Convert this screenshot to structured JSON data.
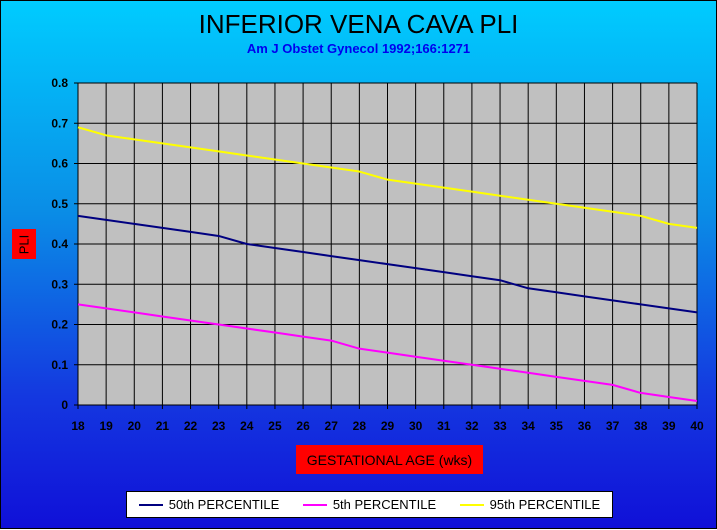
{
  "title": "INFERIOR VENA CAVA PLI",
  "subtitle": "Am J Obstet Gynecol 1992;166:1271",
  "chart_data": {
    "type": "line",
    "title": "INFERIOR VENA CAVA PLI",
    "subtitle": "Am J Obstet Gynecol 1992;166:1271",
    "xlabel": "GESTATIONAL AGE (wks)",
    "ylabel": "PLI",
    "x": [
      18,
      19,
      20,
      21,
      22,
      23,
      24,
      25,
      26,
      27,
      28,
      29,
      30,
      31,
      32,
      33,
      34,
      35,
      36,
      37,
      38,
      39,
      40
    ],
    "xlim": [
      18,
      40
    ],
    "ylim": [
      0,
      0.8
    ],
    "yticks": [
      "0",
      "0.1",
      "0.2",
      "0.3",
      "0.4",
      "0.5",
      "0.6",
      "0.7",
      "0.8"
    ],
    "yticks_values": [
      0,
      0.1,
      0.2,
      0.3,
      0.4,
      0.5,
      0.6,
      0.7,
      0.8
    ],
    "grid": true,
    "legend_placement": "bottom",
    "plot_background": "#c0c0c0",
    "series": [
      {
        "name": "50th PERCENTILE",
        "color": "#000080",
        "values": [
          0.47,
          0.46,
          0.45,
          0.44,
          0.43,
          0.42,
          0.4,
          0.39,
          0.38,
          0.37,
          0.36,
          0.35,
          0.34,
          0.33,
          0.32,
          0.31,
          0.29,
          0.28,
          0.27,
          0.26,
          0.25,
          0.24,
          0.23
        ]
      },
      {
        "name": "5th PERCENTILE",
        "color": "#ff00ff",
        "values": [
          0.25,
          0.24,
          0.23,
          0.22,
          0.21,
          0.2,
          0.19,
          0.18,
          0.17,
          0.16,
          0.14,
          0.13,
          0.12,
          0.11,
          0.1,
          0.09,
          0.08,
          0.07,
          0.06,
          0.05,
          0.03,
          0.02,
          0.01
        ]
      },
      {
        "name": "95th PERCENTILE",
        "color": "#ffff00",
        "values": [
          0.69,
          0.67,
          0.66,
          0.65,
          0.64,
          0.63,
          0.62,
          0.61,
          0.6,
          0.59,
          0.58,
          0.56,
          0.55,
          0.54,
          0.53,
          0.52,
          0.51,
          0.5,
          0.49,
          0.48,
          0.47,
          0.45,
          0.44
        ]
      }
    ]
  }
}
